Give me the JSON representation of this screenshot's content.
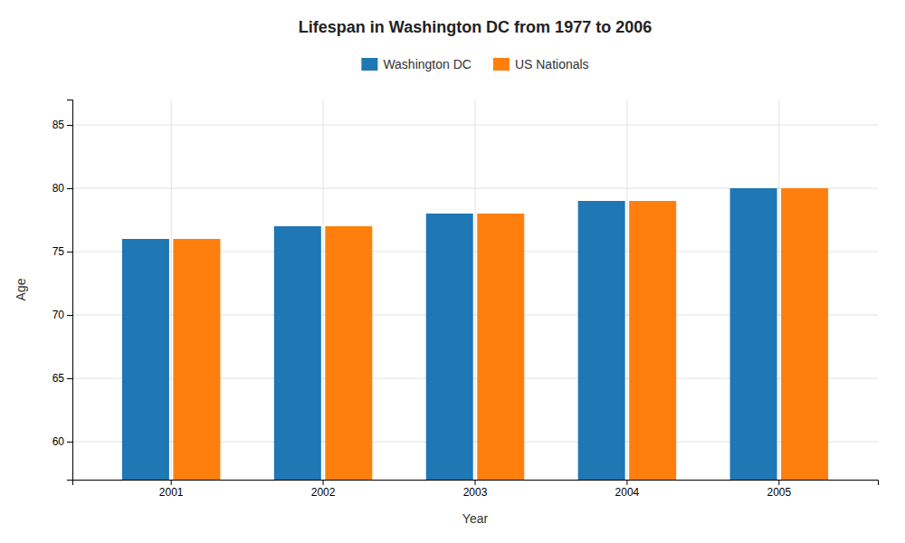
{
  "chart_data": {
    "type": "bar",
    "title": "Lifespan in Washington DC from 1977 to 2006",
    "x_label": "Year",
    "y_label": "Age",
    "categories": [
      "2001",
      "2002",
      "2003",
      "2004",
      "2005"
    ],
    "series": [
      {
        "name": "Washington DC",
        "values": [
          76,
          77,
          78,
          79,
          80
        ]
      },
      {
        "name": "US Nationals",
        "values": [
          76,
          77,
          78,
          79,
          80
        ]
      }
    ],
    "ylim": [
      57,
      87
    ],
    "yticks": [
      60,
      65,
      70,
      75,
      80,
      85
    ],
    "grid": true,
    "legend": "top"
  }
}
